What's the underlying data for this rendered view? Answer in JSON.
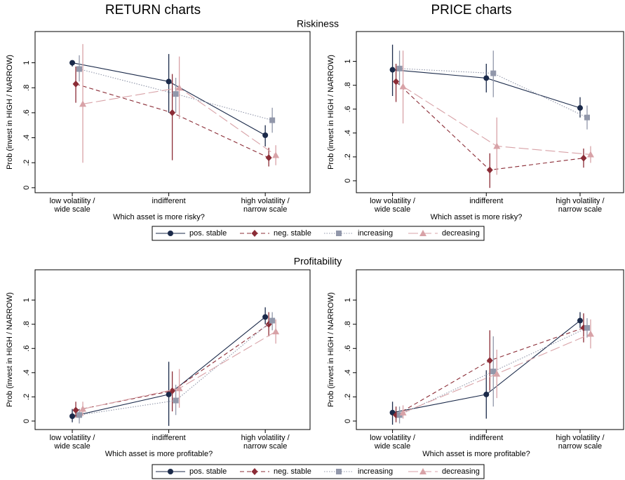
{
  "column_titles": [
    "RETURN charts",
    "PRICE charts"
  ],
  "row_titles": [
    "Riskiness",
    "Profitability"
  ],
  "chart_data": [
    {
      "type": "line",
      "ylabel": "Prob (invest in HIGH / NARROW)",
      "xlabel": "Which asset is more risky?",
      "categories": [
        "low volatility /\nwide scale",
        "indifferent",
        "high volatility /\nnarrow scale"
      ],
      "ylim": [
        -0.04,
        1.25
      ],
      "yticks": [
        0,
        {
          "value": 0.2,
          "label": ".2"
        },
        {
          "value": 0.4,
          "label": ".4"
        },
        {
          "value": 0.6,
          "label": ".6"
        },
        {
          "value": 0.8,
          "label": ".8"
        },
        1
      ],
      "series": [
        {
          "name": "pos. stable",
          "color": "#1b2a4a",
          "marker": "circle",
          "dash": "solid",
          "values": [
            1.0,
            0.85,
            0.42
          ],
          "ci_low": [
            0.97,
            0.6,
            0.33
          ],
          "ci_high": [
            1.0,
            1.07,
            0.5
          ]
        },
        {
          "name": "neg. stable",
          "color": "#8b2c36",
          "marker": "diamond",
          "dash": "dash",
          "values": [
            0.83,
            0.6,
            0.24
          ],
          "ci_low": [
            0.68,
            0.22,
            0.17
          ],
          "ci_high": [
            0.97,
            0.91,
            0.32
          ]
        },
        {
          "name": "increasing",
          "color": "#9197aa",
          "marker": "square",
          "dash": "dot",
          "values": [
            0.95,
            0.75,
            0.54
          ],
          "ci_low": [
            0.85,
            0.6,
            0.44
          ],
          "ci_high": [
            1.06,
            0.88,
            0.64
          ]
        },
        {
          "name": "decreasing",
          "color": "#d8a2a7",
          "marker": "triangle",
          "dash": "longdash",
          "values": [
            0.67,
            0.8,
            0.26
          ],
          "ci_low": [
            0.2,
            0.55,
            0.18
          ],
          "ci_high": [
            1.15,
            1.05,
            0.34
          ]
        }
      ]
    },
    {
      "type": "line",
      "ylabel": "Prob (invest in HIGH / NARROW)",
      "xlabel": "Which asset is more risky?",
      "categories": [
        "low volatility /\nwide scale",
        "indifferent",
        "high volatility /\nnarrow scale"
      ],
      "ylim": [
        -0.1,
        1.25
      ],
      "yticks": [
        0,
        {
          "value": 0.2,
          "label": ".2"
        },
        {
          "value": 0.4,
          "label": ".4"
        },
        {
          "value": 0.6,
          "label": ".6"
        },
        {
          "value": 0.8,
          "label": ".8"
        },
        1
      ],
      "series": [
        {
          "name": "pos. stable",
          "color": "#1b2a4a",
          "marker": "circle",
          "dash": "solid",
          "values": [
            0.93,
            0.86,
            0.61
          ],
          "ci_low": [
            0.71,
            0.74,
            0.53
          ],
          "ci_high": [
            1.14,
            0.98,
            0.7
          ]
        },
        {
          "name": "neg. stable",
          "color": "#8b2c36",
          "marker": "diamond",
          "dash": "dash",
          "values": [
            0.83,
            0.09,
            0.19
          ],
          "ci_low": [
            0.66,
            -0.06,
            0.11
          ],
          "ci_high": [
            0.98,
            0.23,
            0.27
          ]
        },
        {
          "name": "increasing",
          "color": "#9197aa",
          "marker": "square",
          "dash": "dot",
          "values": [
            0.94,
            0.9,
            0.53
          ],
          "ci_low": [
            0.8,
            0.7,
            0.43
          ],
          "ci_high": [
            1.09,
            1.09,
            0.63
          ]
        },
        {
          "name": "decreasing",
          "color": "#d8a2a7",
          "marker": "triangle",
          "dash": "longdash",
          "values": [
            0.79,
            0.29,
            0.22
          ],
          "ci_low": [
            0.48,
            0.05,
            0.15
          ],
          "ci_high": [
            1.09,
            0.53,
            0.29
          ]
        }
      ]
    },
    {
      "type": "line",
      "ylabel": "Prob (invest in HIGH / NARROW)",
      "xlabel": "Which asset is more profitable?",
      "categories": [
        "low volatility /\nwide scale",
        "indifferent",
        "high volatility /\nnarrow scale"
      ],
      "ylim": [
        -0.07,
        1.25
      ],
      "yticks": [
        0,
        {
          "value": 0.2,
          "label": ".2"
        },
        {
          "value": 0.4,
          "label": ".4"
        },
        {
          "value": 0.6,
          "label": ".6"
        },
        {
          "value": 0.8,
          "label": ".8"
        },
        1
      ],
      "series": [
        {
          "name": "pos. stable",
          "color": "#1b2a4a",
          "marker": "circle",
          "dash": "solid",
          "values": [
            0.04,
            0.22,
            0.86
          ],
          "ci_low": [
            -0.01,
            -0.04,
            0.8
          ],
          "ci_high": [
            0.1,
            0.49,
            0.94
          ]
        },
        {
          "name": "neg. stable",
          "color": "#8b2c36",
          "marker": "diamond",
          "dash": "dash",
          "values": [
            0.09,
            0.25,
            0.8
          ],
          "ci_low": [
            0.03,
            0.08,
            0.7
          ],
          "ci_high": [
            0.16,
            0.41,
            0.9
          ]
        },
        {
          "name": "increasing",
          "color": "#9197aa",
          "marker": "square",
          "dash": "dot",
          "values": [
            0.05,
            0.17,
            0.83
          ],
          "ci_low": [
            -0.02,
            0.05,
            0.75
          ],
          "ci_high": [
            0.1,
            0.3,
            0.9
          ]
        },
        {
          "name": "decreasing",
          "color": "#d8a2a7",
          "marker": "triangle",
          "dash": "longdash",
          "values": [
            0.1,
            0.27,
            0.74
          ],
          "ci_low": [
            0.04,
            0.11,
            0.64
          ],
          "ci_high": [
            0.16,
            0.43,
            0.84
          ]
        }
      ]
    },
    {
      "type": "line",
      "ylabel": "Prob (invest in HIGH / NARROW)",
      "xlabel": "Which asset is more profitable?",
      "categories": [
        "low volatility /\nwide scale",
        "indifferent",
        "high volatility /\nnarrow scale"
      ],
      "ylim": [
        -0.07,
        1.25
      ],
      "yticks": [
        0,
        {
          "value": 0.2,
          "label": ".2"
        },
        {
          "value": 0.4,
          "label": ".4"
        },
        {
          "value": 0.6,
          "label": ".6"
        },
        {
          "value": 0.8,
          "label": ".8"
        },
        1
      ],
      "series": [
        {
          "name": "pos. stable",
          "color": "#1b2a4a",
          "marker": "circle",
          "dash": "solid",
          "values": [
            0.07,
            0.22,
            0.83
          ],
          "ci_low": [
            -0.03,
            0.02,
            0.77
          ],
          "ci_high": [
            0.16,
            0.42,
            0.9
          ]
        },
        {
          "name": "neg. stable",
          "color": "#8b2c36",
          "marker": "diamond",
          "dash": "dash",
          "values": [
            0.05,
            0.5,
            0.77
          ],
          "ci_low": [
            -0.01,
            0.25,
            0.65
          ],
          "ci_high": [
            0.12,
            0.75,
            0.89
          ]
        },
        {
          "name": "increasing",
          "color": "#9197aa",
          "marker": "square",
          "dash": "dot",
          "values": [
            0.05,
            0.41,
            0.77
          ],
          "ci_low": [
            -0.02,
            0.12,
            0.69
          ],
          "ci_high": [
            0.12,
            0.7,
            0.85
          ]
        },
        {
          "name": "decreasing",
          "color": "#d8a2a7",
          "marker": "triangle",
          "dash": "longdash",
          "values": [
            0.07,
            0.39,
            0.72
          ],
          "ci_low": [
            0.02,
            0.19,
            0.6
          ],
          "ci_high": [
            0.13,
            0.59,
            0.84
          ]
        }
      ]
    }
  ]
}
